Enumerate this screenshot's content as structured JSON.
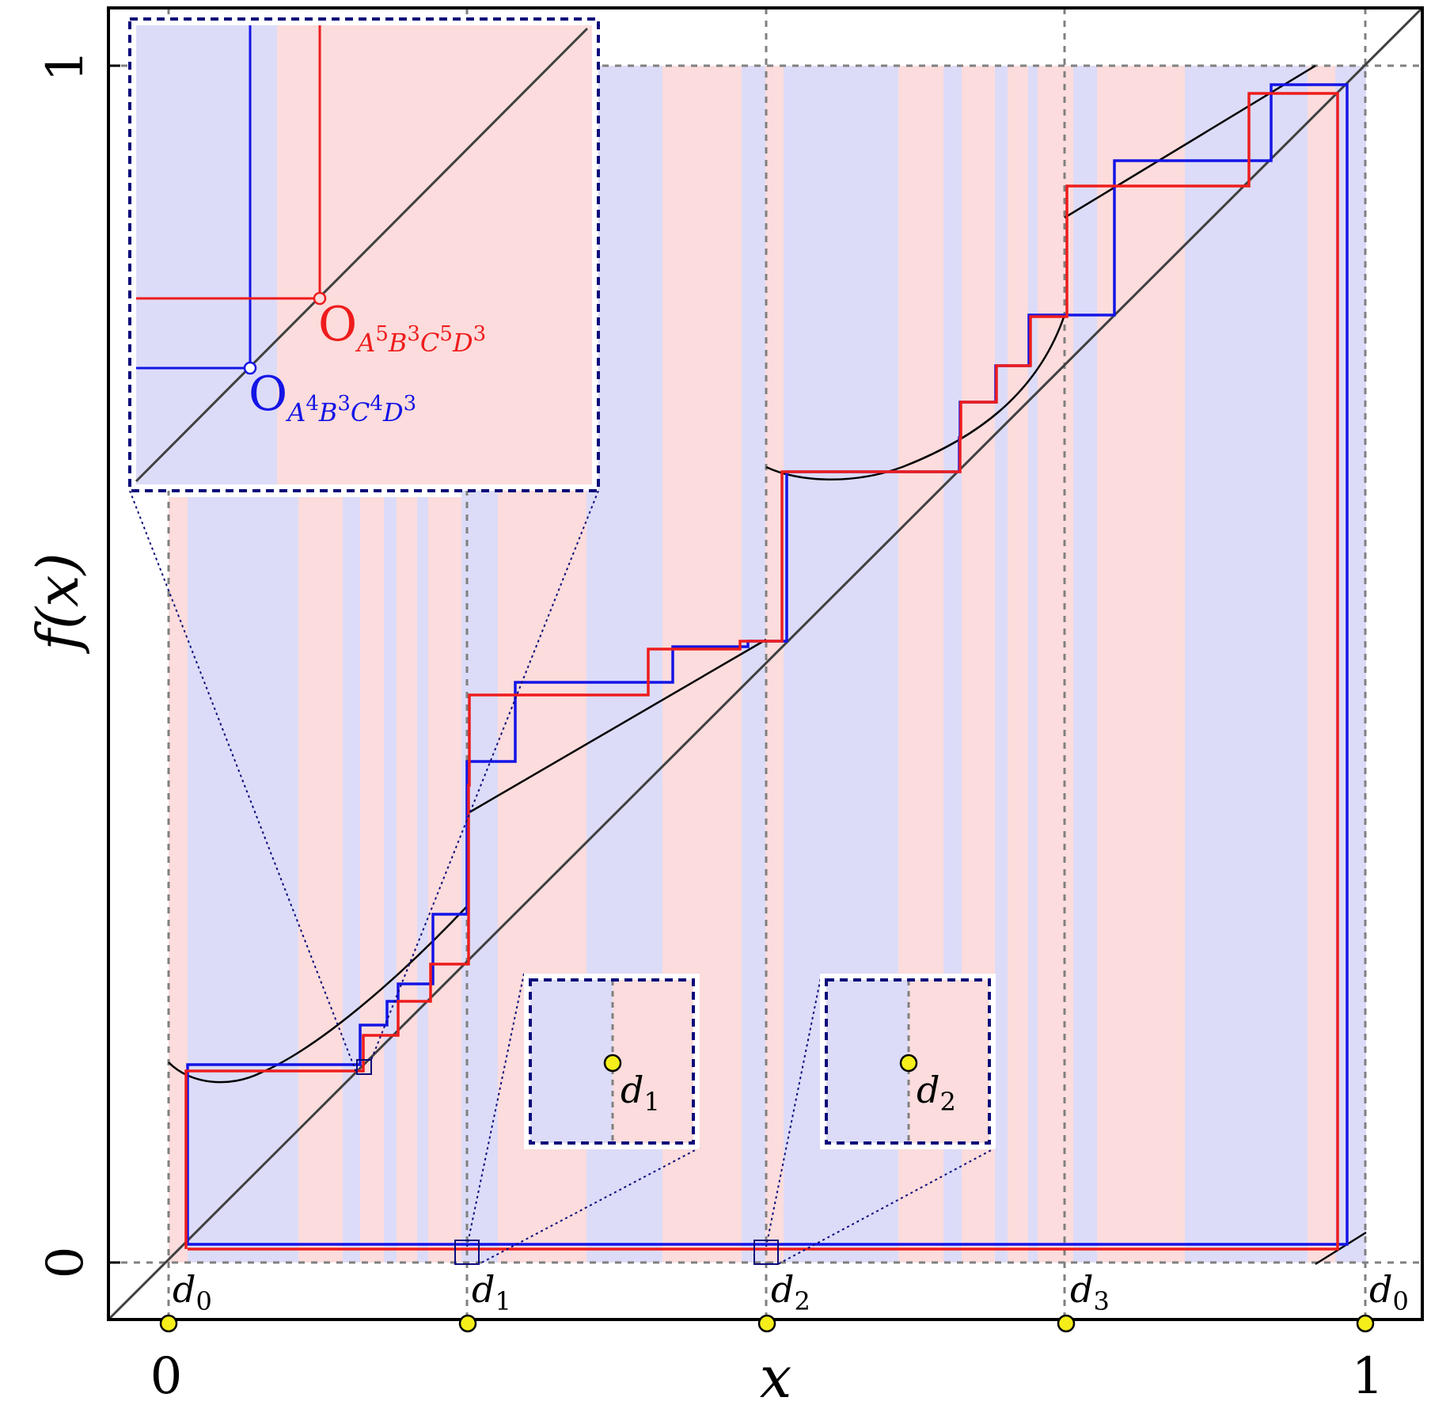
{
  "axes": {
    "xlabel": "x",
    "ylabel": "f(x)",
    "x_ticks": [
      "0",
      "1"
    ],
    "y_ticks": [
      "0",
      "1"
    ]
  },
  "discontinuities": [
    {
      "name": "d",
      "sub": "0",
      "x": 0.0
    },
    {
      "name": "d",
      "sub": "1",
      "x": 0.25
    },
    {
      "name": "d",
      "sub": "2",
      "x": 0.5
    },
    {
      "name": "d",
      "sub": "3",
      "x": 0.75
    },
    {
      "name": "d",
      "sub": "0",
      "x": 1.0
    }
  ],
  "insets": {
    "d1": {
      "name": "d",
      "sub": "1"
    },
    "d2": {
      "name": "d",
      "sub": "2"
    }
  },
  "orbits": {
    "red": {
      "label": "O",
      "symbolic": [
        {
          "base": "A",
          "sup": "5"
        },
        {
          "base": "B",
          "sup": "3"
        },
        {
          "base": "C",
          "sup": "5"
        },
        {
          "base": "D",
          "sup": "3"
        }
      ],
      "color": "#ee1c1c"
    },
    "blue": {
      "label": "O",
      "symbolic": [
        {
          "base": "A",
          "sup": "4"
        },
        {
          "base": "B",
          "sup": "3"
        },
        {
          "base": "C",
          "sup": "4"
        },
        {
          "base": "D",
          "sup": "3"
        }
      ],
      "color": "#1414e6"
    }
  },
  "colors": {
    "region_blue": "#dcdcf8",
    "region_red": "#fcdcdc",
    "marker": "#f5ee1a",
    "inset_border": "#0a0a7a",
    "grid": "#808080"
  }
}
